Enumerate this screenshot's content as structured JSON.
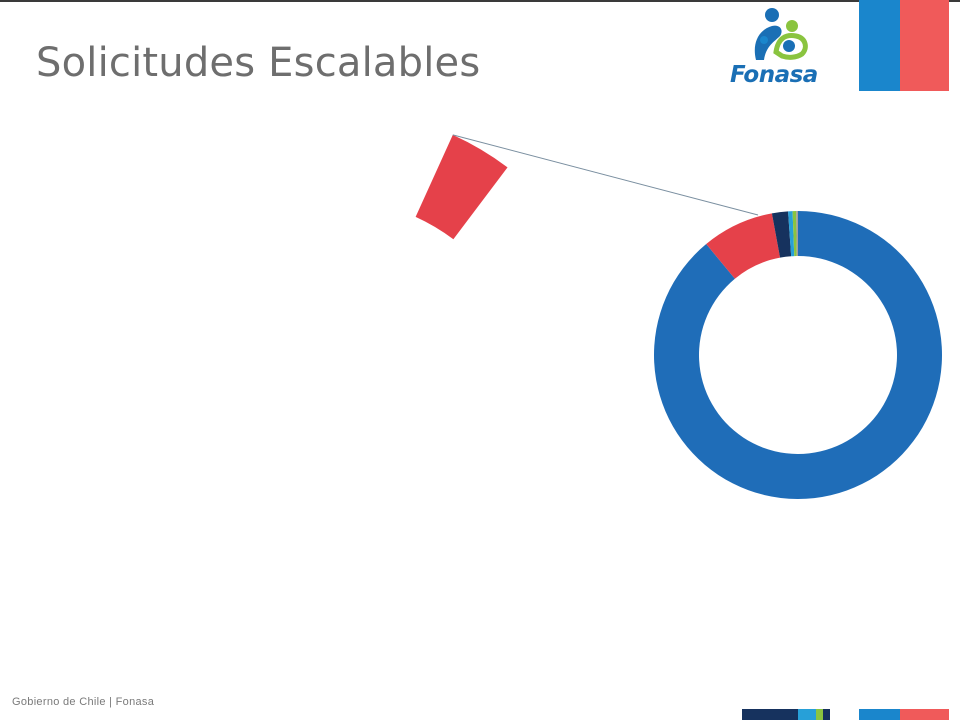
{
  "slide": {
    "title": "Solicitudes Escalables",
    "footer": "Gobierno de Chile | Fonasa",
    "logo_text": "Fonasa",
    "brand_colors": {
      "blue": "#1a86cc",
      "red": "#f05a5a"
    },
    "logo_icon": "fonasa-family-icon"
  },
  "chart_data": {
    "type": "pie",
    "subtype": "pie-of-pie-doughnut",
    "main": {
      "slices": [
        {
          "value": 96.5,
          "color": "#1f6db8"
        },
        {
          "value": 3.5,
          "color": "#e5414a",
          "exploded_into_secondary": true
        }
      ]
    },
    "secondary": {
      "slices": [
        {
          "value": 89.0,
          "color": "#1f6db8"
        },
        {
          "value": 8.1,
          "color": "#e5414a"
        },
        {
          "value": 1.8,
          "color": "#16325e"
        },
        {
          "value": 0.5,
          "color": "#27a0d8"
        },
        {
          "value": 0.4,
          "color": "#8ac43f"
        },
        {
          "value": 0.2,
          "color": "#a0a0a0"
        }
      ]
    },
    "legend": "none",
    "data_labels": "none"
  }
}
